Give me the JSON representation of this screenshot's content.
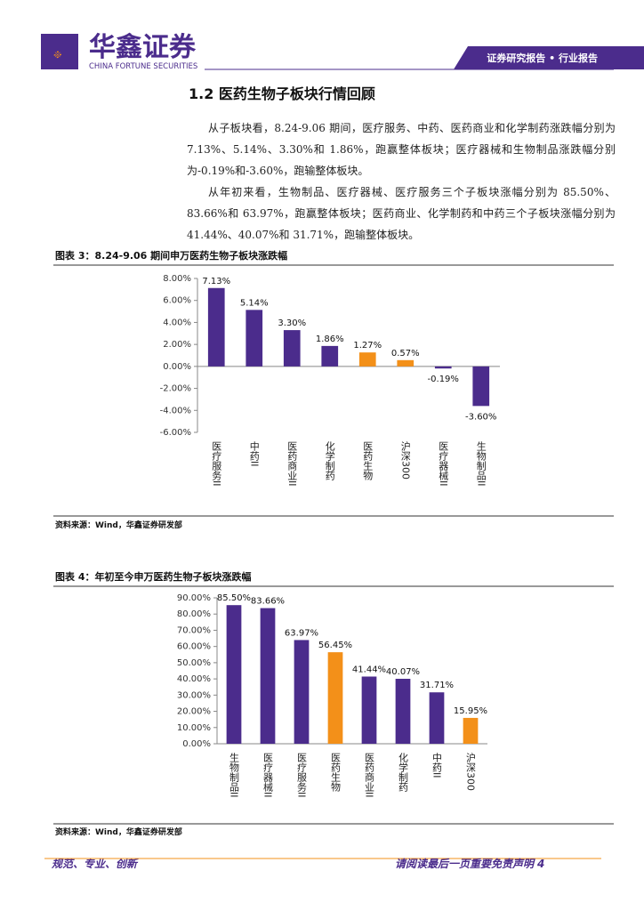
{
  "header": {
    "logo": "华鑫证券",
    "logo_sub": "CHINA FORTUNE SECURITIES",
    "tag": "证券研究报告 • 行业报告"
  },
  "section_title": "1.2 医药生物子板块行情回顾",
  "paragraphs": [
    "从子板块看，8.24-9.06 期间，医疗服务、中药、医药商业和化学制药涨跌幅分别为 7.13%、5.14%、3.30%和 1.86%，跑赢整体板块；医疗器械和生物制品涨跌幅分别为-0.19%和-3.60%，跑输整体板块。",
    "从年初来看，生物制品、医疗器械、医疗服务三个子板块涨幅分别为 85.50%、83.66%和 63.97%，跑赢整体板块；医药商业、化学制药和中药三个子板块涨幅分别为 41.44%、40.07%和 31.71%，跑输整体板块。"
  ],
  "chart_data": [
    {
      "type": "bar",
      "title": "图表 3：8.24-9.06 期间申万医药生物子板块涨跌幅",
      "source": "资料来源：Wind，华鑫证券研发部",
      "categories": [
        "医疗服务II",
        "中药II",
        "医药商业II",
        "化学制药",
        "医药生物",
        "沪深300",
        "医疗器械II",
        "生物制品II"
      ],
      "values": [
        7.13,
        5.14,
        3.3,
        1.86,
        1.27,
        0.57,
        -0.19,
        -3.6
      ],
      "value_labels": [
        "7.13%",
        "5.14%",
        "3.30%",
        "1.86%",
        "1.27%",
        "0.57%",
        "-0.19%",
        "-3.60%"
      ],
      "colors": [
        "#4b2c8c",
        "#4b2c8c",
        "#4b2c8c",
        "#4b2c8c",
        "#f39019",
        "#f39019",
        "#4b2c8c",
        "#4b2c8c"
      ],
      "ylim": [
        -6,
        8
      ],
      "yticks": [
        {
          "value": 8,
          "label": "8.00%"
        },
        {
          "value": 6,
          "label": "6.00%"
        },
        {
          "value": 4,
          "label": "4.00%"
        },
        {
          "value": 2,
          "label": "2.00%"
        },
        {
          "value": 0,
          "label": "0.00%"
        },
        {
          "value": -2,
          "label": "-2.00%"
        },
        {
          "value": -4,
          "label": "-4.00%"
        },
        {
          "value": -6,
          "label": "-6.00%"
        }
      ],
      "grid": false
    },
    {
      "type": "bar",
      "title": "图表 4：年初至今申万医药生物子板块涨跌幅",
      "source": "资料来源：Wind，华鑫证券研发部",
      "categories": [
        "生物制品II",
        "医疗器械II",
        "医疗服务II",
        "医药生物",
        "医药商业II",
        "化学制药",
        "中药II",
        "沪深300"
      ],
      "values": [
        85.5,
        83.66,
        63.97,
        56.45,
        41.44,
        40.07,
        31.71,
        15.95
      ],
      "value_labels": [
        "85.50%",
        "83.66%",
        "63.97%",
        "56.45%",
        "41.44%",
        "40.07%",
        "31.71%",
        "15.95%"
      ],
      "colors": [
        "#4b2c8c",
        "#4b2c8c",
        "#4b2c8c",
        "#f39019",
        "#4b2c8c",
        "#4b2c8c",
        "#4b2c8c",
        "#f39019"
      ],
      "ylim": [
        0,
        90
      ],
      "yticks": [
        {
          "value": 90,
          "label": "90.00%"
        },
        {
          "value": 80,
          "label": "80.00%"
        },
        {
          "value": 70,
          "label": "70.00%"
        },
        {
          "value": 60,
          "label": "60.00%"
        },
        {
          "value": 50,
          "label": "50.00%"
        },
        {
          "value": 40,
          "label": "40.00%"
        },
        {
          "value": 30,
          "label": "30.00%"
        },
        {
          "value": 20,
          "label": "20.00%"
        },
        {
          "value": 10,
          "label": "10.00%"
        },
        {
          "value": 0,
          "label": "0.00%"
        }
      ],
      "grid": false
    }
  ],
  "footer": {
    "left": "规范、专业、创新",
    "right": "请阅读最后一页重要免责声明",
    "page": 4
  }
}
